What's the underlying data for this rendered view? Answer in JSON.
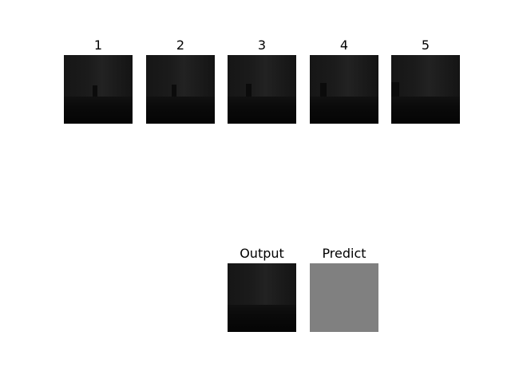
{
  "frames": [
    {
      "label": "1"
    },
    {
      "label": "2"
    },
    {
      "label": "3"
    },
    {
      "label": "4"
    },
    {
      "label": "5"
    }
  ],
  "output": {
    "label": "Output"
  },
  "predict": {
    "label": "Predict"
  },
  "colors": {
    "background": "#ffffff",
    "scene_dark": "#1a1a1a",
    "predict_fill": "#808080"
  }
}
